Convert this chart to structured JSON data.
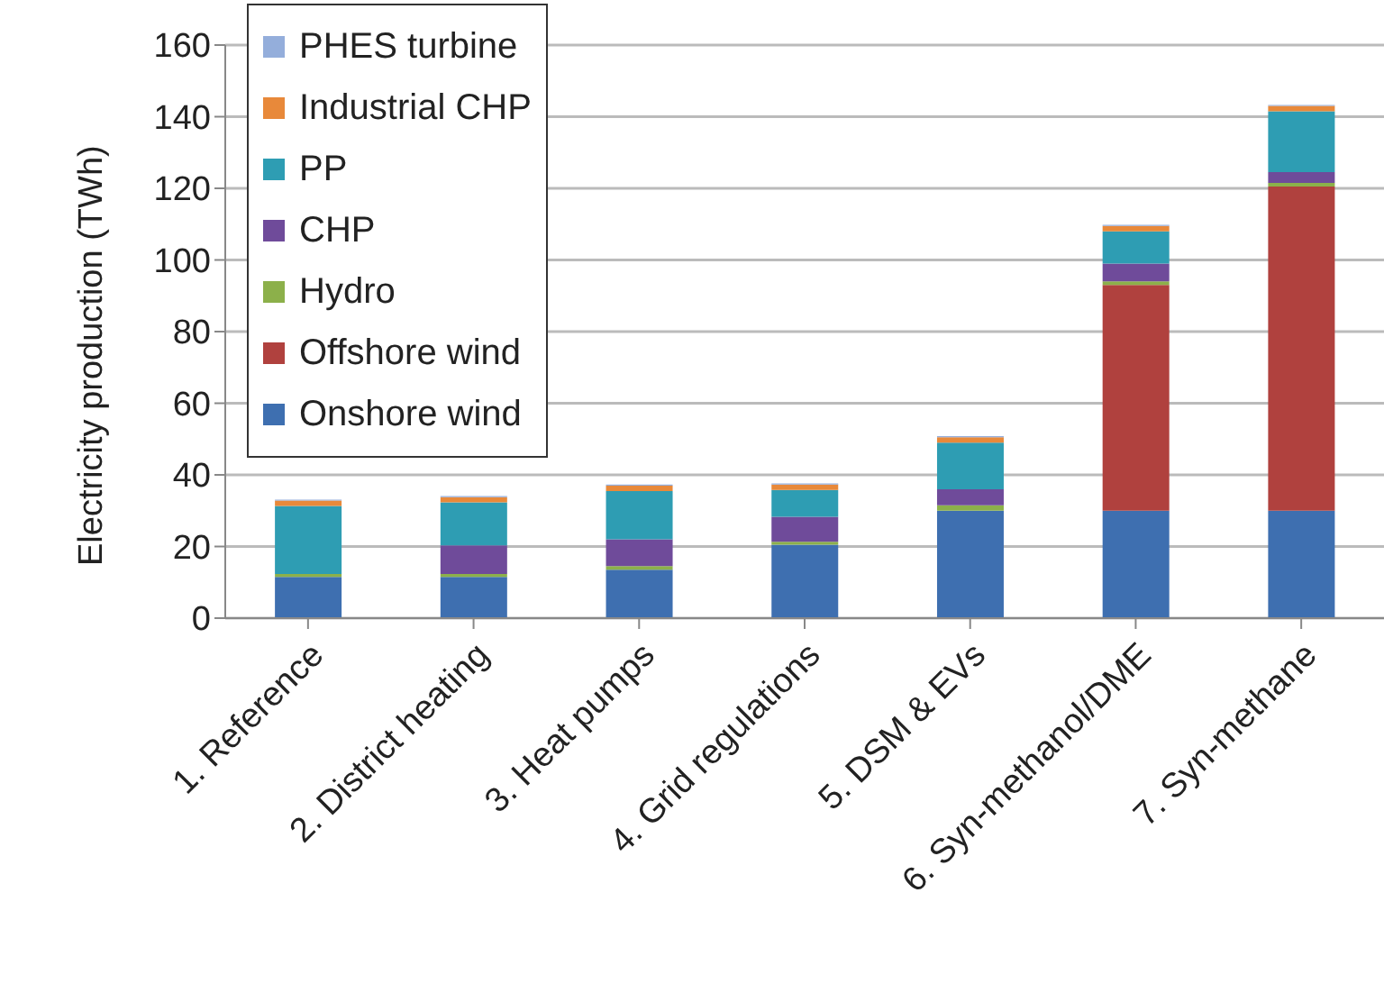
{
  "chart_data": {
    "type": "bar",
    "stacked": true,
    "ylabel": "Electricity production (TWh)",
    "categories": [
      "1. Reference",
      "2. District heating",
      "3. Heat pumps",
      "4. Grid regulations",
      "5. DSM & EVs",
      "6. Syn-methanol/DME",
      "7. Syn-methane"
    ],
    "series": [
      {
        "name": "Onshore wind",
        "color": "#3e6fb0",
        "values": [
          11.5,
          11.5,
          13.5,
          20.5,
          30,
          30,
          30
        ]
      },
      {
        "name": "Offshore wind",
        "color": "#b0413e",
        "values": [
          0,
          0,
          0,
          0,
          0,
          63,
          90.5
        ]
      },
      {
        "name": "Hydro",
        "color": "#8cb04a",
        "values": [
          0.8,
          0.8,
          1,
          0.8,
          1.5,
          1,
          1
        ]
      },
      {
        "name": "CHP",
        "color": "#6f4b9a",
        "values": [
          0,
          8,
          7.5,
          7,
          4.5,
          5,
          3
        ]
      },
      {
        "name": "PP",
        "color": "#2e9db3",
        "values": [
          19,
          12,
          13.5,
          7.5,
          13,
          9,
          17
        ]
      },
      {
        "name": "Industrial CHP",
        "color": "#e8893a",
        "values": [
          1.5,
          1.5,
          1.5,
          1.5,
          1.5,
          1.5,
          1.5
        ]
      },
      {
        "name": "PHES turbine",
        "color": "#94aedb",
        "values": [
          0.3,
          0.3,
          0.3,
          0.3,
          0.3,
          0.3,
          0.3
        ]
      }
    ],
    "ylim": [
      0,
      160
    ],
    "yticks": [
      0,
      20,
      40,
      60,
      80,
      100,
      120,
      140,
      160
    ],
    "grid": "y",
    "legend": "top left"
  }
}
